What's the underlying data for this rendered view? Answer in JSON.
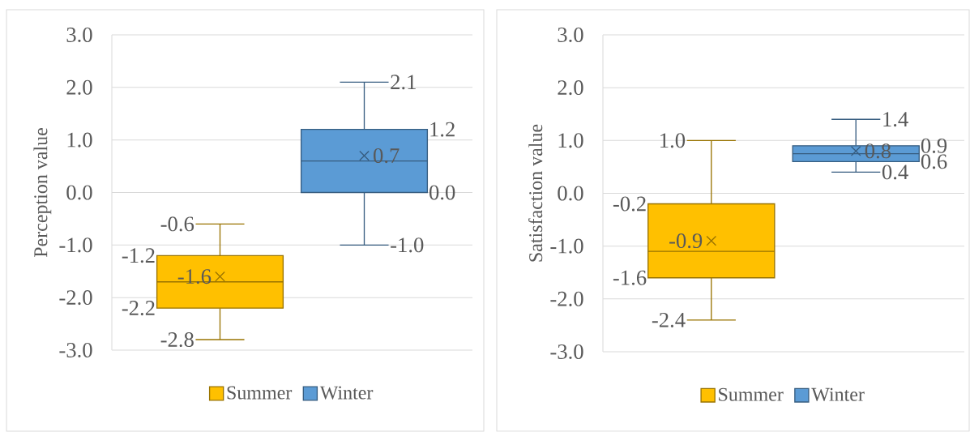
{
  "chart_data": [
    {
      "type": "box",
      "ylabel": "Perception value",
      "categories": [
        null
      ],
      "ylim": [
        -3,
        3
      ],
      "yticks": [
        {
          "value": -3,
          "label": "-3.0"
        },
        {
          "value": -2,
          "label": "-2.0"
        },
        {
          "value": -1,
          "label": "-1.0"
        },
        {
          "value": 0,
          "label": "0.0"
        },
        {
          "value": 1,
          "label": "1.0"
        },
        {
          "value": 2,
          "label": "2.0"
        },
        {
          "value": 3,
          "label": "3.0"
        }
      ],
      "grid": "y",
      "legend": "bottom",
      "tick_labels": "y",
      "series": [
        {
          "name": "Summer",
          "color": "#ffc000",
          "boxes": [
            {
              "low": -2.8,
              "q1": -2.2,
              "median": -1.7,
              "q3": -1.2,
              "high": -0.6,
              "mean": -1.6
            }
          ]
        },
        {
          "name": "Winter",
          "color": "#5b9bd5",
          "boxes": [
            {
              "low": -1.0,
              "q1": 0.0,
              "median": 0.6,
              "q3": 1.2,
              "high": 2.1,
              "mean": 0.7
            }
          ]
        }
      ],
      "annotations": [
        "-2.8",
        "-2.2",
        "-1.6",
        "-1.2",
        "-0.6",
        "-1.0",
        "0.0",
        "0.7",
        "1.2",
        "2.1"
      ]
    },
    {
      "type": "box",
      "ylabel": "Satisfaction value",
      "categories": [
        null
      ],
      "ylim": [
        -3,
        3
      ],
      "yticks": [
        {
          "value": -3,
          "label": "-3.0"
        },
        {
          "value": -2,
          "label": "-2.0"
        },
        {
          "value": -1,
          "label": "-1.0"
        },
        {
          "value": 0,
          "label": "0.0"
        },
        {
          "value": 1,
          "label": "1.0"
        },
        {
          "value": 2,
          "label": "2.0"
        },
        {
          "value": 3,
          "label": "3.0"
        }
      ],
      "grid": "y",
      "legend": "bottom",
      "tick_labels": "y",
      "series": [
        {
          "name": "Summer",
          "color": "#ffc000",
          "boxes": [
            {
              "low": -2.4,
              "q1": -1.6,
              "median": -1.1,
              "q3": -0.2,
              "high": 1.0,
              "mean": -0.9
            }
          ]
        },
        {
          "name": "Winter",
          "color": "#5b9bd5",
          "boxes": [
            {
              "low": 0.4,
              "q1": 0.6,
              "median": 0.75,
              "q3": 0.9,
              "high": 1.4,
              "mean": 0.8
            }
          ]
        }
      ],
      "annotations": [
        "-2.4",
        "-1.6",
        "-0.9",
        "-0.2",
        "1.0",
        "0.4",
        "0.6",
        "0.8",
        "0.9",
        "1.4"
      ]
    }
  ]
}
